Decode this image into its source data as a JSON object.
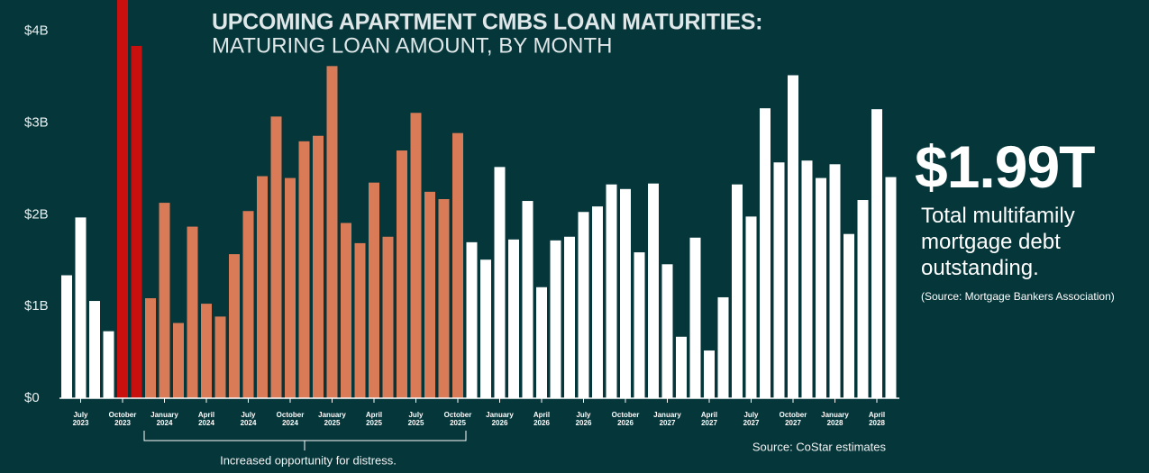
{
  "chart_data": {
    "type": "bar",
    "title": "UPCOMING APARTMENT CMBS LOAN MATURITIES:",
    "subtitle": "MATURING LOAN AMOUNT, BY MONTH",
    "categories": [
      null,
      "July 2023",
      null,
      null,
      "October 2023",
      null,
      null,
      "January 2024",
      null,
      null,
      "April 2024",
      null,
      null,
      "July 2024",
      null,
      null,
      "October 2024",
      null,
      null,
      "January 2025",
      null,
      null,
      "April 2025",
      null,
      null,
      "July 2025",
      null,
      null,
      "October 2025",
      null,
      null,
      "January 2026",
      null,
      null,
      "April 2026",
      null,
      null,
      "July 2026",
      null,
      null,
      "October 2026",
      null,
      null,
      "January 2027",
      null,
      null,
      "April 2027",
      null,
      null,
      "July 2027",
      null,
      null,
      "October 2027",
      null,
      null,
      "January 2028",
      null,
      null,
      "April 2028",
      null
    ],
    "values": [
      1.34,
      1.97,
      1.06,
      0.73,
      4.4,
      3.84,
      1.09,
      2.13,
      0.82,
      1.87,
      1.03,
      0.89,
      1.57,
      2.04,
      2.42,
      3.07,
      2.4,
      2.8,
      2.86,
      3.62,
      1.91,
      1.69,
      2.35,
      1.76,
      2.7,
      3.11,
      2.25,
      2.17,
      2.89,
      1.7,
      1.51,
      2.52,
      1.73,
      2.15,
      1.21,
      1.72,
      1.76,
      2.03,
      2.09,
      2.33,
      2.28,
      1.59,
      2.34,
      1.46,
      0.67,
      1.75,
      0.52,
      1.1,
      2.33,
      1.98,
      3.16,
      2.57,
      3.52,
      2.59,
      2.4,
      2.55,
      1.79,
      2.16,
      3.15,
      2.41
    ],
    "colors": [
      "#ffffff",
      "#ffffff",
      "#ffffff",
      "#ffffff",
      "#c8100f",
      "#c8100f",
      "#d97b57",
      "#d97b57",
      "#d97b57",
      "#d97b57",
      "#d97b57",
      "#d97b57",
      "#d97b57",
      "#d97b57",
      "#d97b57",
      "#d97b57",
      "#d97b57",
      "#d97b57",
      "#d97b57",
      "#d97b57",
      "#d97b57",
      "#d97b57",
      "#d97b57",
      "#d97b57",
      "#d97b57",
      "#d97b57",
      "#d97b57",
      "#d97b57",
      "#d97b57",
      "#ffffff",
      "#ffffff",
      "#ffffff",
      "#ffffff",
      "#ffffff",
      "#ffffff",
      "#ffffff",
      "#ffffff",
      "#ffffff",
      "#ffffff",
      "#ffffff",
      "#ffffff",
      "#ffffff",
      "#ffffff",
      "#ffffff",
      "#ffffff",
      "#ffffff",
      "#ffffff",
      "#ffffff",
      "#ffffff",
      "#ffffff",
      "#ffffff",
      "#ffffff",
      "#ffffff",
      "#ffffff",
      "#ffffff",
      "#ffffff",
      "#ffffff",
      "#ffffff",
      "#ffffff",
      "#ffffff"
    ],
    "ylim": [
      0,
      4.34
    ],
    "yticks": [
      {
        "value": 0,
        "label": "$0"
      },
      {
        "value": 1,
        "label": "$1B"
      },
      {
        "value": 2,
        "label": "$2B"
      },
      {
        "value": 3,
        "label": "$3B"
      },
      {
        "value": 4,
        "label": "$4B"
      }
    ],
    "grid": false,
    "annotation": "Increased opportunity for distress.",
    "callout_value": "$1.99T",
    "callout_text": "Total multifamily mortgage debt outstanding.",
    "callout_source": "(Source: Mortgage Bankers Association)",
    "source": "Source: CoStar estimates"
  }
}
